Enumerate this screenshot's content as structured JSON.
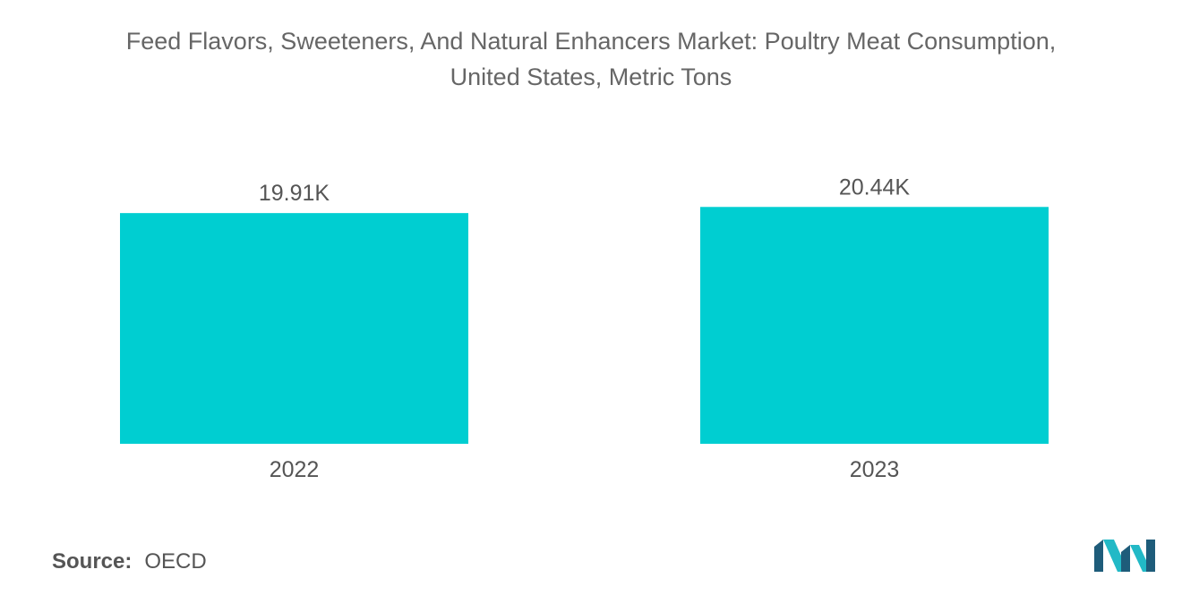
{
  "title": {
    "line1": "Feed Flavors, Sweeteners, And Natural Enhancers Market: Poultry Meat Consumption,",
    "line2": "United States, Metric Tons"
  },
  "source": {
    "label": "Source:",
    "value": "OECD"
  },
  "colors": {
    "bar": "#00CED1",
    "text": "#555555",
    "title": "#666666",
    "logo_dark": "#1E5C7A",
    "logo_light": "#22B9C6"
  },
  "chart_data": {
    "type": "bar",
    "categories": [
      "2022",
      "2023"
    ],
    "values": [
      19.91,
      20.44
    ],
    "data_labels": [
      "19.91K",
      "20.44K"
    ],
    "unit": "K",
    "title": "Feed Flavors, Sweeteners, And Natural Enhancers Market: Poultry Meat Consumption, United States, Metric Tons",
    "xlabel": "",
    "ylabel": "",
    "ylim": [
      0,
      24.4
    ],
    "grid": false,
    "legend": "none"
  }
}
